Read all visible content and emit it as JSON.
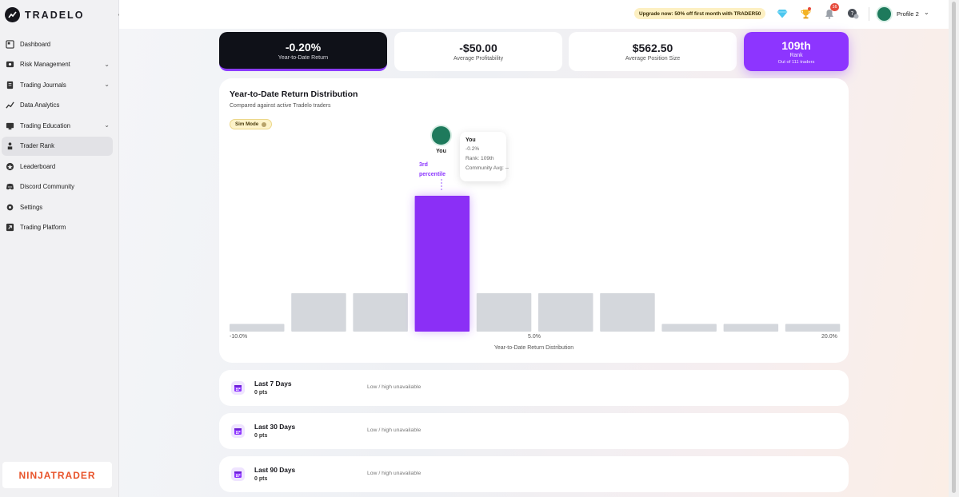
{
  "app": {
    "name": "TRADELO"
  },
  "sidebar": {
    "items": [
      {
        "label": "Dashboard",
        "icon": "dashboard-icon",
        "chevron": false
      },
      {
        "label": "Risk Management",
        "icon": "risk-icon",
        "chevron": true
      },
      {
        "label": "Trading Journals",
        "icon": "journal-icon",
        "chevron": true
      },
      {
        "label": "Data Analytics",
        "icon": "analytics-icon",
        "chevron": false
      },
      {
        "label": "Trading Education",
        "icon": "education-icon",
        "chevron": true
      },
      {
        "label": "Trader Rank",
        "icon": "rank-icon",
        "chevron": false,
        "active": true
      },
      {
        "label": "Leaderboard",
        "icon": "leaderboard-icon",
        "chevron": false
      },
      {
        "label": "Discord Community",
        "icon": "discord-icon",
        "chevron": false
      },
      {
        "label": "Settings",
        "icon": "gear-icon",
        "chevron": false
      },
      {
        "label": "Trading Platform",
        "icon": "external-link-icon",
        "chevron": false
      }
    ],
    "partner": "NINJATRADER"
  },
  "header": {
    "promo": "Upgrade now: 50% off first month with TRADER50",
    "notification_count": "16",
    "profile_name": "Profile 2"
  },
  "stats": {
    "ytd": {
      "value": "-0.20%",
      "label": "Year-to-Date Return"
    },
    "profitability": {
      "value": "-$50.00",
      "label": "Average Profitability"
    },
    "position": {
      "value": "$562.50",
      "label": "Average Position Size"
    },
    "rank": {
      "value": "109th",
      "label": "Rank",
      "sub": "Out of 111 traders"
    }
  },
  "chart": {
    "title": "Year-to-Date Return Distribution",
    "subtitle": "Compared against active Tradelo traders",
    "sim_badge": "Sim Mode",
    "you_label": "You",
    "percentile_line1": "3rd",
    "percentile_line2": "percentile",
    "tooltip": {
      "title": "You",
      "return": "-0.2%",
      "rank": "Rank: 109th",
      "community": "Community Avg: --"
    }
  },
  "chart_data": {
    "type": "bar",
    "xlabel": "Year-to-Date Return Distribution",
    "x_ticks": [
      "-10.0%",
      "5.0%",
      "20.0%"
    ],
    "values": [
      3,
      15,
      15,
      53,
      15,
      15,
      15,
      3,
      3,
      3
    ],
    "highlight_index": 3,
    "colors": {
      "bar": "#d4d7dc",
      "highlight": "#8b2ff6"
    }
  },
  "periods": [
    {
      "name": "Last 7 Days",
      "pts": "0 pts",
      "range": "Low / high unavailable"
    },
    {
      "name": "Last 30 Days",
      "pts": "0 pts",
      "range": "Low / high unavailable"
    },
    {
      "name": "Last 90 Days",
      "pts": "0 pts",
      "range": "Low / high unavailable"
    }
  ]
}
